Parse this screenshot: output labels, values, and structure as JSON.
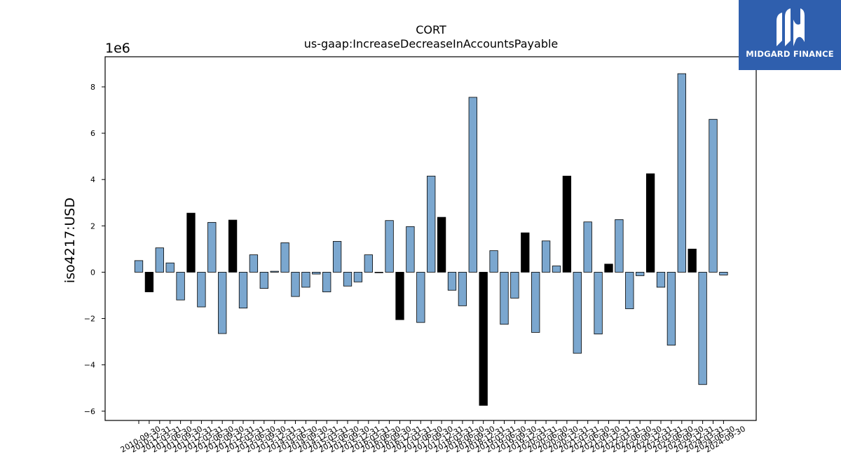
{
  "chart_data": {
    "type": "bar",
    "title": "CORT",
    "subtitle": "us-gaap:IncreaseDecreaseInAccountsPayable",
    "ylabel": "iso4217:USD",
    "xlabel": "",
    "offset_label": "1e6",
    "ylim": [
      -6.4,
      9.3
    ],
    "yticks": [
      -6,
      -4,
      -2,
      0,
      2,
      4,
      6,
      8
    ],
    "ytick_labels": [
      "−6",
      "−4",
      "−2",
      "0",
      "2",
      "4",
      "6",
      "8"
    ],
    "categories": [
      "2010-09-30",
      "2010-12-31",
      "2011-03-31",
      "2011-06-30",
      "2011-09-30",
      "2011-12-31",
      "2012-03-31",
      "2012-06-30",
      "2012-09-30",
      "2012-12-31",
      "2013-03-31",
      "2013-06-30",
      "2013-09-30",
      "2013-12-31",
      "2014-03-31",
      "2014-06-30",
      "2014-09-30",
      "2014-12-31",
      "2015-03-31",
      "2015-06-30",
      "2015-09-30",
      "2015-12-31",
      "2016-03-31",
      "2016-06-30",
      "2016-09-30",
      "2016-12-31",
      "2017-03-31",
      "2017-06-30",
      "2017-09-30",
      "2017-12-31",
      "2018-03-31",
      "2018-06-30",
      "2018-09-30",
      "2018-12-31",
      "2019-03-31",
      "2019-06-30",
      "2019-09-30",
      "2019-12-31",
      "2020-03-31",
      "2020-06-30",
      "2020-09-30",
      "2020-12-31",
      "2021-03-31",
      "2021-06-30",
      "2021-09-30",
      "2021-12-31",
      "2022-03-31",
      "2022-06-30",
      "2022-09-30",
      "2022-12-31",
      "2023-03-31",
      "2023-06-30",
      "2023-09-30",
      "2023-12-31",
      "2024-03-31",
      "2024-06-30",
      "2024-09-30"
    ],
    "values": [
      0.5,
      -0.85,
      1.05,
      0.4,
      -1.2,
      2.55,
      -1.5,
      2.15,
      -2.65,
      2.25,
      -1.55,
      0.75,
      -0.7,
      0.04,
      1.27,
      -1.05,
      -0.65,
      -0.08,
      -0.85,
      1.33,
      -0.6,
      -0.42,
      0.75,
      -0.02,
      2.23,
      -2.05,
      1.97,
      -2.17,
      4.15,
      2.37,
      -0.78,
      -1.45,
      7.55,
      -5.75,
      0.93,
      -2.25,
      -1.12,
      1.7,
      -2.6,
      1.35,
      0.27,
      4.15,
      -3.5,
      2.17,
      -2.67,
      0.35,
      2.27,
      -1.58,
      -0.15,
      4.25,
      -0.65,
      -3.15,
      8.57,
      1.0,
      -4.85,
      6.6,
      -0.12
    ],
    "highlight_indices": [
      1,
      5,
      9,
      25,
      29,
      33,
      37,
      41,
      45,
      49,
      53
    ],
    "colors": {
      "bar": "#7ba7cf",
      "highlight": "#000000",
      "edge": "#000000",
      "axis": "#000000"
    }
  },
  "logo": {
    "name": "MIDGARD FINANCE",
    "background": "#2f5fae"
  }
}
